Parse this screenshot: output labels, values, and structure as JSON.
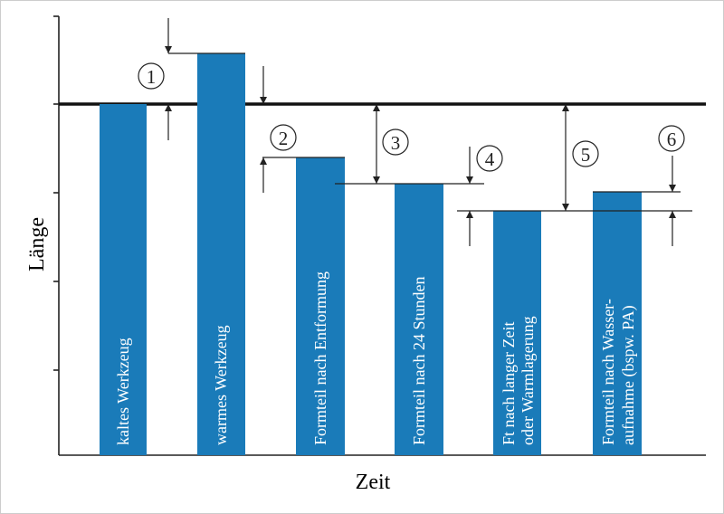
{
  "axis": {
    "y_label": "Länge",
    "x_label": "Zeit"
  },
  "bars": [
    {
      "label": [
        "kaltes Werkzeug"
      ]
    },
    {
      "label": [
        "warmes Werkzeug"
      ]
    },
    {
      "label": [
        "Formteil nach Entformung"
      ]
    },
    {
      "label": [
        "Formteil nach 24 Stunden"
      ]
    },
    {
      "label": [
        "Ft nach langer Zeit",
        "oder Warmlagerung"
      ]
    },
    {
      "label": [
        "Formteil nach Wasser-",
        "aufnahme (bspw. PA)"
      ]
    }
  ],
  "markers": [
    "1",
    "2",
    "3",
    "4",
    "5",
    "6"
  ]
}
